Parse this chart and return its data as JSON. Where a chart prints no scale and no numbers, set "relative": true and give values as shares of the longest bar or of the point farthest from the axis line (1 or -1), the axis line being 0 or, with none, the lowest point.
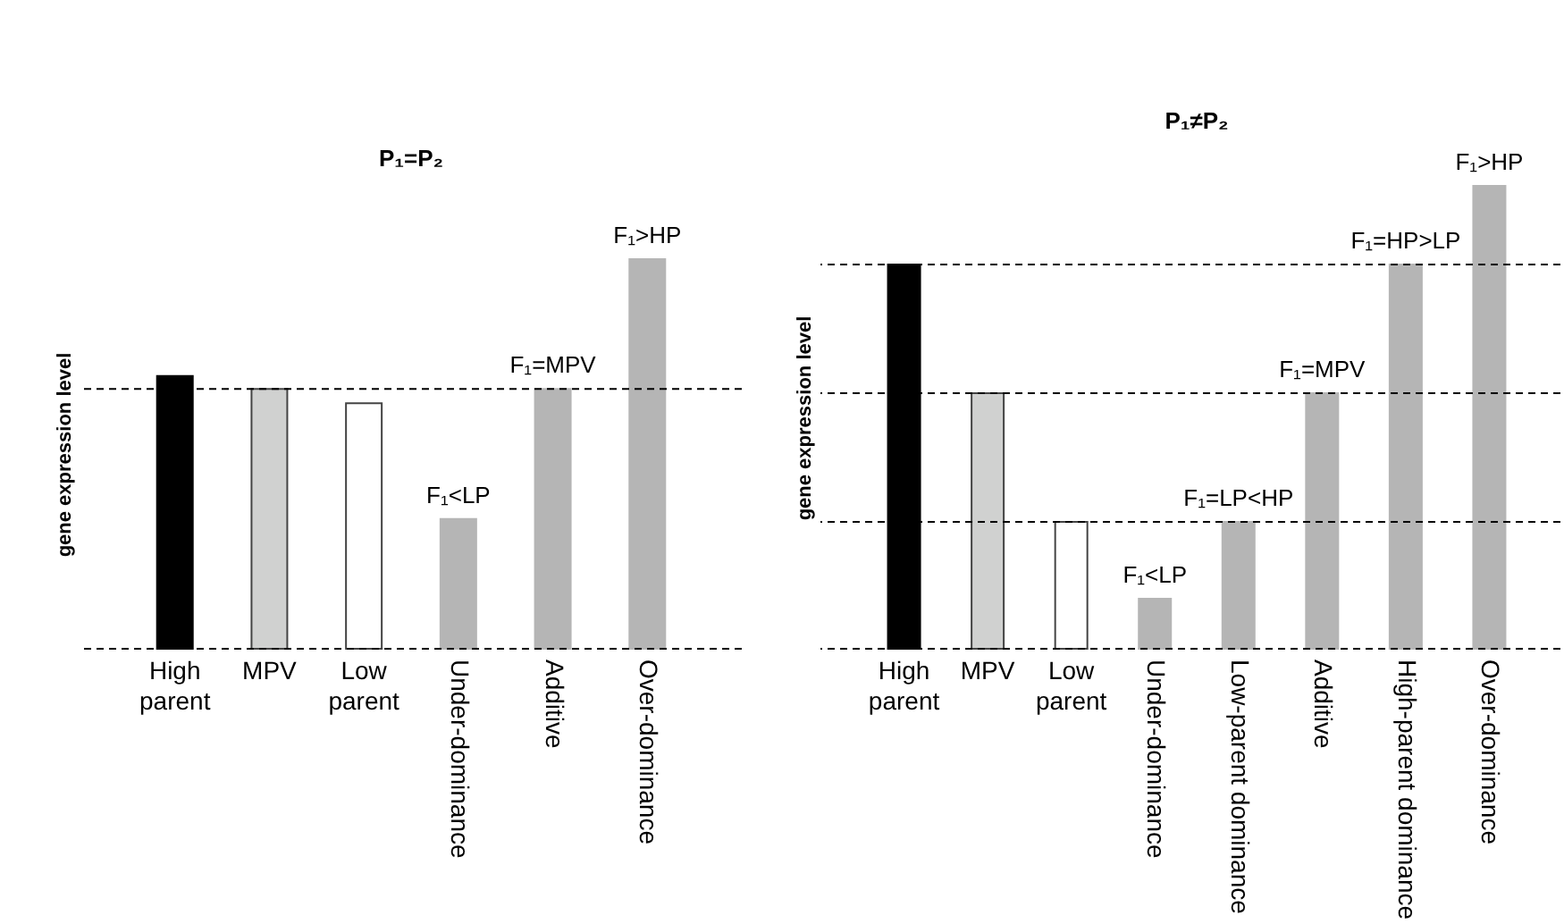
{
  "chart_data": [
    {
      "type": "bar",
      "title": "P₁=P₂",
      "ylabel": "gene expression level",
      "relative": true,
      "categories": [
        "High parent",
        "MPV",
        "Low parent",
        "Under-dominance",
        "Additive",
        "Over-dominance"
      ],
      "values": [
        0.7,
        0.667,
        0.63,
        0.333,
        0.667,
        1
      ],
      "colors": [
        "#000000",
        "#d0d1d0",
        "#ffffff",
        "#b5b5b5",
        "#b5b5b5",
        "#b5b5b5"
      ],
      "ref_lines": [
        {
          "axis": "y",
          "value": 0,
          "line_style": "dashed"
        },
        {
          "axis": "y",
          "value": 0.667,
          "line_style": "dashed"
        }
      ],
      "annotations": [
        {
          "text": "F₁<LP",
          "x": "Under-dominance",
          "y": 0.333
        },
        {
          "text": "F₁=MPV",
          "x": "Additive",
          "y": 0.667
        },
        {
          "text": "F₁>HP",
          "x": "Over-dominance",
          "y": 1
        }
      ]
    },
    {
      "type": "bar",
      "title": "P₁≠P₂",
      "ylabel": "gene expression level",
      "relative": true,
      "categories": [
        "High parent",
        "MPV",
        "Low parent",
        "Under-dominance",
        "Low-parent dominance",
        "Additive",
        "High-parent dominance",
        "Over-dominance"
      ],
      "values": [
        0.83,
        0.552,
        0.274,
        0.108,
        0.274,
        0.552,
        0.83,
        1
      ],
      "colors": [
        "#000000",
        "#d0d1d0",
        "#ffffff",
        "#b5b5b5",
        "#b5b5b5",
        "#b5b5b5",
        "#b5b5b5",
        "#b5b5b5"
      ],
      "ref_lines": [
        {
          "axis": "y",
          "value": 0,
          "line_style": "dashed"
        },
        {
          "axis": "y",
          "value": 0.274,
          "line_style": "dashed"
        },
        {
          "axis": "y",
          "value": 0.552,
          "line_style": "dashed"
        },
        {
          "axis": "y",
          "value": 0.83,
          "line_style": "dashed"
        }
      ],
      "annotations": [
        {
          "text": "F₁<LP",
          "x": "Under-dominance",
          "y": 0.108
        },
        {
          "text": "F₁=LP<HP",
          "x": "Low-parent dominance",
          "y": 0.274
        },
        {
          "text": "F₁=MPV",
          "x": "Additive",
          "y": 0.552
        },
        {
          "text": "F₁=HP>LP",
          "x": "High-parent dominance",
          "y": 0.83
        },
        {
          "text": "F₁>HP",
          "x": "Over-dominance",
          "y": 1
        }
      ]
    }
  ]
}
